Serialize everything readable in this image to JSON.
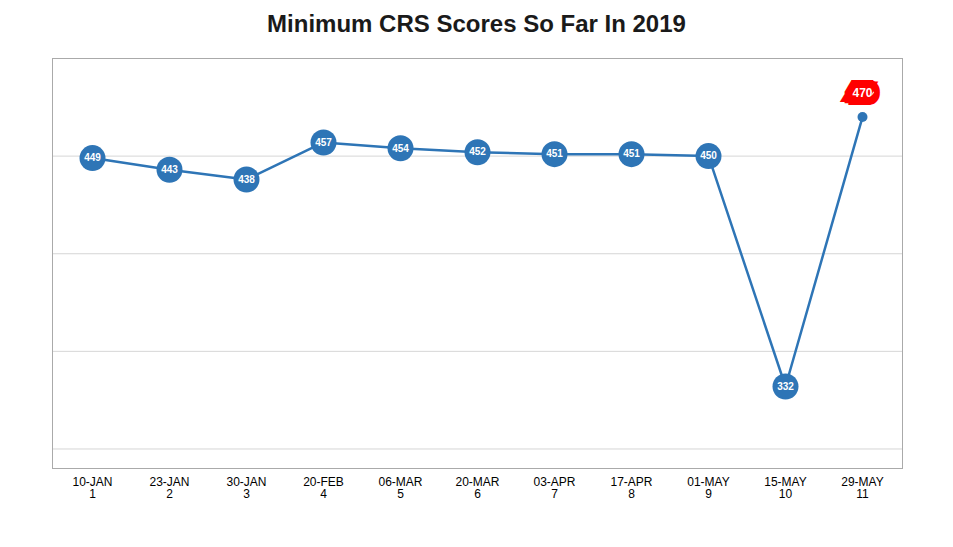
{
  "chart_data": {
    "type": "line",
    "title": "Minimum CRS Scores So Far In 2019",
    "categories": [
      "10-JAN\n1",
      "23-JAN\n2",
      "30-JAN\n3",
      "20-FEB\n4",
      "06-MAR\n5",
      "20-MAR\n6",
      "03-APR\n7",
      "17-APR\n8",
      "01-MAY\n9",
      "15-MAY\n10",
      "29-MAY\n11"
    ],
    "values": [
      449,
      443,
      438,
      457,
      454,
      452,
      451,
      451,
      450,
      332,
      470
    ],
    "color": "#2E75B6",
    "marker": "circle",
    "ylim": [
      290,
      500
    ],
    "yticks": [
      300,
      350,
      400,
      450,
      500
    ],
    "grid": true,
    "tick_labels": "x",
    "data_labels": true
  }
}
